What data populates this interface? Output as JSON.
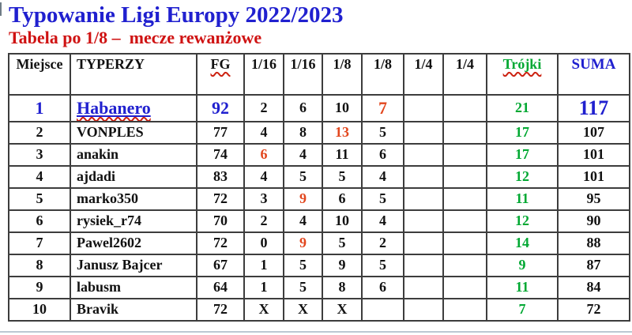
{
  "colors": {
    "blue": "#2020cf",
    "red-title": "#cf1212",
    "red": "#e2461d",
    "green": "#00a832",
    "wavy": "#cc2211"
  },
  "page": {
    "title": "Typowanie Ligi Europy 2022/2023",
    "subtitle": "Tabela po 1/8 –  mecze rewanżowe"
  },
  "table": {
    "columns": [
      {
        "key": "miejsce",
        "label": "Miejsce"
      },
      {
        "key": "typerzy",
        "label": "TYPERZY",
        "name_col": true
      },
      {
        "key": "fg",
        "label": "FG",
        "wavy": true
      },
      {
        "key": "r116a",
        "label": "1/16"
      },
      {
        "key": "r116b",
        "label": "1/16"
      },
      {
        "key": "r18a",
        "label": "1/8"
      },
      {
        "key": "r18b",
        "label": "1/8"
      },
      {
        "key": "r14a",
        "label": "1/4"
      },
      {
        "key": "r14b",
        "label": "1/4"
      },
      {
        "key": "trojki",
        "label": "Trójki",
        "color": "green",
        "wavy": true
      },
      {
        "key": "suma",
        "label": "SUMA",
        "color": "blue",
        "hdr_big": true
      }
    ],
    "rows": [
      {
        "leader": true,
        "cells": [
          {
            "t": "1",
            "c": "blue",
            "big": true
          },
          {
            "t": "Habanero",
            "c": "blue",
            "big": true,
            "underline": true,
            "wavy": true
          },
          {
            "t": "92",
            "c": "blue",
            "big": true
          },
          "2",
          "6",
          "10",
          {
            "t": "7",
            "c": "red",
            "big": true
          },
          "",
          "",
          {
            "t": "21",
            "c": "green"
          },
          {
            "t": "117",
            "c": "blue",
            "xl": true
          }
        ]
      },
      {
        "cells": [
          "2",
          "VONPLES",
          "77",
          "4",
          "8",
          {
            "t": "13",
            "c": "red"
          },
          "5",
          "",
          "",
          {
            "t": "17",
            "c": "green"
          },
          "107"
        ]
      },
      {
        "cells": [
          "3",
          "anakin",
          "74",
          {
            "t": "6",
            "c": "red"
          },
          "4",
          "11",
          "6",
          "",
          "",
          {
            "t": "17",
            "c": "green"
          },
          "101"
        ]
      },
      {
        "cells": [
          "4",
          "ajdadi",
          "83",
          "4",
          "5",
          "5",
          "4",
          "",
          "",
          {
            "t": "12",
            "c": "green"
          },
          "101"
        ]
      },
      {
        "cells": [
          "5",
          "marko350",
          "72",
          "3",
          {
            "t": "9",
            "c": "red"
          },
          "6",
          "5",
          "",
          "",
          {
            "t": "11",
            "c": "green"
          },
          "95"
        ]
      },
      {
        "cells": [
          "6",
          "rysiek_r74",
          "70",
          "2",
          "4",
          "10",
          "4",
          "",
          "",
          {
            "t": "12",
            "c": "green"
          },
          "90"
        ]
      },
      {
        "cells": [
          "7",
          "Pawel2602",
          "72",
          "0",
          {
            "t": "9",
            "c": "red"
          },
          "5",
          "2",
          "",
          "",
          {
            "t": "14",
            "c": "green"
          },
          "88"
        ]
      },
      {
        "cells": [
          "8",
          "Janusz Bajcer",
          "67",
          "1",
          "5",
          "9",
          "5",
          "",
          "",
          {
            "t": "9",
            "c": "green"
          },
          "87"
        ]
      },
      {
        "cells": [
          "9",
          "labusm",
          "64",
          "1",
          "5",
          "8",
          "6",
          "",
          "",
          {
            "t": "11",
            "c": "green"
          },
          "84"
        ]
      },
      {
        "cells": [
          "10",
          "Bravik",
          "72",
          "X",
          "X",
          "X",
          "",
          "",
          "",
          {
            "t": "7",
            "c": "green"
          },
          "72"
        ]
      }
    ]
  }
}
